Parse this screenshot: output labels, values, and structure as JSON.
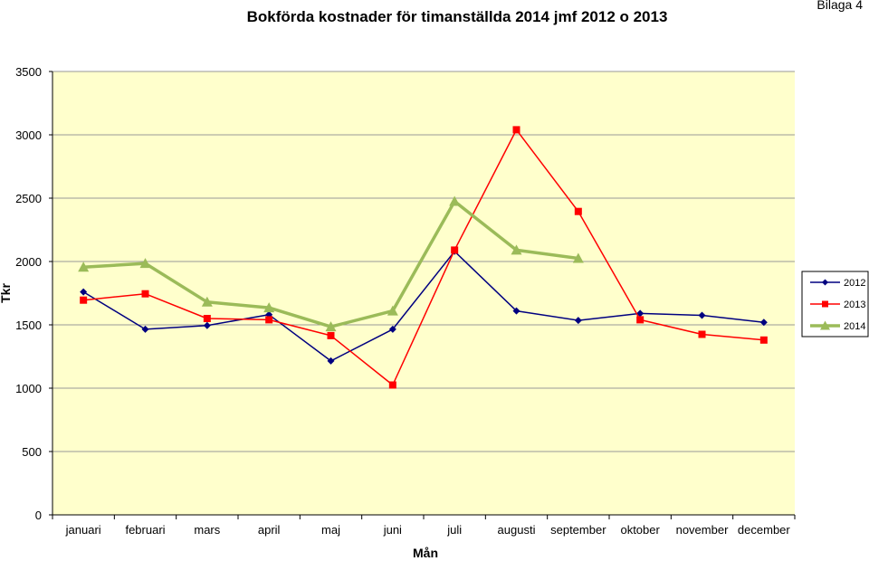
{
  "header": {
    "title": "Bokförda kostnader för timanställda 2014 jmf 2012 o 2013",
    "attachment": "Bilaga 4"
  },
  "chart_data": {
    "type": "line",
    "title": "Bokförda kostnader för timanställda 2014 jmf 2012 o 2013",
    "xlabel": "Mån",
    "ylabel": "Tkr",
    "ylim": [
      0,
      3500
    ],
    "yticks": [
      0,
      500,
      1000,
      1500,
      2000,
      2500,
      3000,
      3500
    ],
    "categories": [
      "januari",
      "februari",
      "mars",
      "april",
      "maj",
      "juni",
      "juli",
      "augusti",
      "september",
      "oktober",
      "november",
      "december"
    ],
    "grid": "horizontal",
    "legend_position": "right",
    "plot_background": "#ffffcc",
    "series": [
      {
        "name": "2012",
        "color": "#000080",
        "marker": "diamond",
        "values": [
          1760,
          1465,
          1495,
          1580,
          1215,
          1465,
          2080,
          1610,
          1535,
          1590,
          1575,
          1520
        ]
      },
      {
        "name": "2013",
        "color": "#ff0000",
        "marker": "square",
        "values": [
          1695,
          1745,
          1550,
          1540,
          1415,
          1025,
          2090,
          3040,
          2395,
          1540,
          1425,
          1380
        ]
      },
      {
        "name": "2014",
        "color": "#9bbb59",
        "marker": "triangle",
        "values": [
          1955,
          1985,
          1680,
          1635,
          1485,
          1610,
          2475,
          2090,
          2025,
          null,
          null,
          null
        ]
      }
    ]
  }
}
